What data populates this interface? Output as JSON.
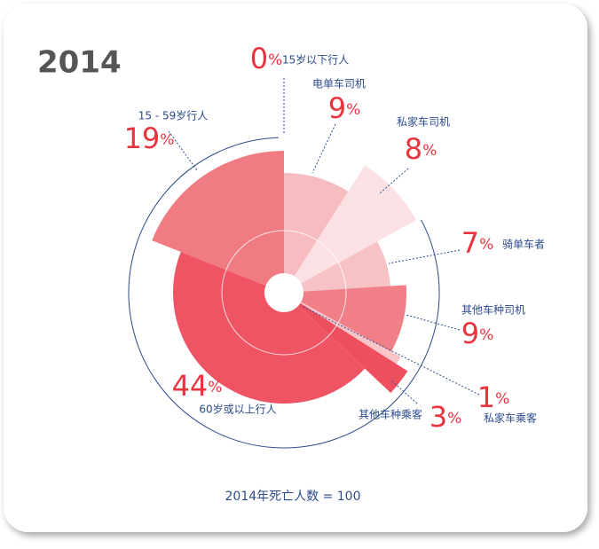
{
  "chart_data": {
    "type": "rose",
    "title": "2014",
    "footer": "2014年死亡人数 = 100",
    "categories": [
      "15岁以下行人",
      "电单车司机",
      "私家车司机",
      "骑单车者",
      "其他车种司机",
      "私家车乘客",
      "其他车种乘客",
      "60岁或以上行人",
      "15 - 59岁行人"
    ],
    "values": [
      0,
      9,
      8,
      7,
      9,
      1,
      3,
      44,
      19
    ],
    "value_labels": [
      "0%",
      "9%",
      "8%",
      "7%",
      "9%",
      "1%",
      "3%",
      "44%",
      "19%"
    ],
    "colors": [
      "#f6bcc0",
      "#f6bcc0",
      "#fbe1e4",
      "#f6c2c6",
      "#f07f87",
      "#f9c5c9",
      "#ee4f5f",
      "#ee5464",
      "#f07b83"
    ]
  }
}
